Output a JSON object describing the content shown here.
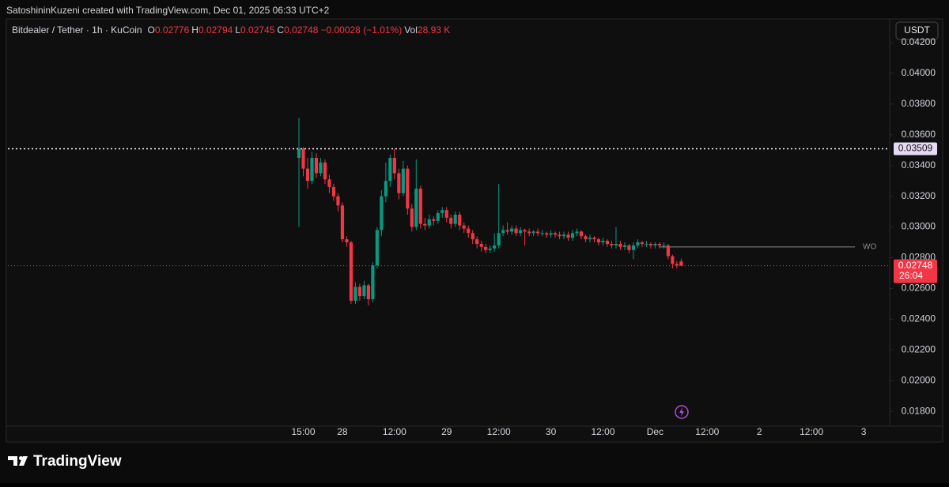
{
  "credit": "SatoshininKuzeni created with TradingView.com, Dec 01, 2025 06:33 UTC+2",
  "brand": "TradingView",
  "currency_button": "USDT",
  "chart_data": {
    "type": "candlestick",
    "symbol": "Bitdealer / Tether · 1h · KuCoin",
    "ohlc_legend": [
      {
        "label": "O",
        "text": "0.02776"
      },
      {
        "label": "H",
        "text": "0.02794"
      },
      {
        "label": "L",
        "text": "0.02745"
      },
      {
        "label": "C",
        "text": "0.02748"
      }
    ],
    "change": "−0.00028 (−1.01%)",
    "volume_label": "Vol",
    "volume": "28.93 K",
    "up_color": "#089981",
    "down_color": "#f23645",
    "x": [
      -1,
      0,
      1,
      2,
      3,
      4,
      5,
      6,
      7,
      8,
      9,
      10,
      11,
      12,
      13,
      14,
      15,
      16,
      17,
      18,
      19,
      20,
      21,
      22,
      23,
      24,
      25,
      26,
      27,
      28,
      29,
      30,
      31,
      32,
      33,
      34,
      35,
      36,
      37,
      38,
      39,
      40,
      41,
      42,
      43,
      44,
      45,
      46,
      47,
      48,
      49,
      50,
      51,
      52,
      53,
      54,
      55,
      56,
      57,
      58,
      59,
      60,
      61,
      62,
      63,
      64,
      65,
      66,
      67,
      68,
      69,
      70,
      71,
      72,
      73,
      74,
      75,
      76,
      77,
      78,
      79,
      80,
      81,
      82,
      83,
      84,
      85,
      86,
      87
    ],
    "open": [
      0.0345,
      0.0351,
      0.0338,
      0.033,
      0.0345,
      0.0335,
      0.0342,
      0.0331,
      0.0326,
      0.032,
      0.0314,
      0.0292,
      0.029,
      0.0252,
      0.0261,
      0.0255,
      0.0262,
      0.0253,
      0.0275,
      0.0298,
      0.032,
      0.033,
      0.0345,
      0.0335,
      0.0322,
      0.0338,
      0.0312,
      0.03,
      0.0325,
      0.0302,
      0.0301,
      0.0305,
      0.0304,
      0.0309,
      0.0311,
      0.0306,
      0.0302,
      0.0308,
      0.0301,
      0.0299,
      0.0296,
      0.0292,
      0.0289,
      0.0287,
      0.0285,
      0.0286,
      0.0288,
      0.0296,
      0.0298,
      0.0297,
      0.0299,
      0.0296,
      0.0298,
      0.0297,
      0.0296,
      0.0297,
      0.0296,
      0.0296,
      0.0295,
      0.0296,
      0.0295,
      0.0294,
      0.0295,
      0.0293,
      0.0296,
      0.0297,
      0.0294,
      0.0292,
      0.0293,
      0.0292,
      0.029,
      0.0291,
      0.0289,
      0.0288,
      0.0289,
      0.0287,
      0.0288,
      0.0285,
      0.0288,
      0.029,
      0.0289,
      0.0289,
      0.0288,
      0.0289,
      0.0288,
      0.0288,
      0.0281,
      0.0276,
      0.02776
    ],
    "high": [
      0.0371,
      0.0352,
      0.0345,
      0.0349,
      0.0348,
      0.0345,
      0.0344,
      0.0334,
      0.0328,
      0.0322,
      0.0316,
      0.0294,
      0.0291,
      0.0264,
      0.0263,
      0.0265,
      0.0263,
      0.0277,
      0.03,
      0.0324,
      0.0342,
      0.0347,
      0.0351,
      0.0338,
      0.0343,
      0.034,
      0.0315,
      0.0344,
      0.0327,
      0.0306,
      0.0308,
      0.0307,
      0.0311,
      0.0313,
      0.0313,
      0.0308,
      0.031,
      0.031,
      0.0303,
      0.0301,
      0.0298,
      0.0294,
      0.0291,
      0.0289,
      0.0288,
      0.0296,
      0.0328,
      0.0301,
      0.0303,
      0.0301,
      0.0301,
      0.03,
      0.0299,
      0.0299,
      0.0298,
      0.0299,
      0.0298,
      0.0297,
      0.0298,
      0.0297,
      0.0297,
      0.0297,
      0.0297,
      0.0298,
      0.0299,
      0.0298,
      0.0295,
      0.0295,
      0.0294,
      0.0293,
      0.0293,
      0.0292,
      0.0291,
      0.03,
      0.0291,
      0.029,
      0.0289,
      0.029,
      0.0292,
      0.0291,
      0.0291,
      0.029,
      0.029,
      0.029,
      0.029,
      0.0289,
      0.0282,
      0.0278,
      0.02794
    ],
    "low": [
      0.03,
      0.0333,
      0.0325,
      0.0328,
      0.0332,
      0.0333,
      0.0328,
      0.0322,
      0.0317,
      0.031,
      0.029,
      0.0287,
      0.025,
      0.025,
      0.0252,
      0.0253,
      0.0249,
      0.0251,
      0.0273,
      0.0294,
      0.0316,
      0.0326,
      0.0331,
      0.0318,
      0.032,
      0.0308,
      0.0297,
      0.0298,
      0.0299,
      0.0298,
      0.0299,
      0.0301,
      0.0302,
      0.0306,
      0.0303,
      0.0299,
      0.03,
      0.0298,
      0.0296,
      0.0293,
      0.0289,
      0.0286,
      0.0284,
      0.0283,
      0.0283,
      0.0284,
      0.0286,
      0.0294,
      0.0295,
      0.0295,
      0.0294,
      0.0294,
      0.0288,
      0.0294,
      0.0294,
      0.0294,
      0.0294,
      0.0293,
      0.0293,
      0.0293,
      0.0292,
      0.0292,
      0.0291,
      0.0291,
      0.0294,
      0.0292,
      0.029,
      0.029,
      0.029,
      0.0288,
      0.0288,
      0.0287,
      0.0286,
      0.0286,
      0.0285,
      0.0285,
      0.0283,
      0.0279,
      0.0286,
      0.0287,
      0.0287,
      0.0286,
      0.0286,
      0.0286,
      0.0286,
      0.0279,
      0.0273,
      0.0273,
      0.02745
    ],
    "close": [
      0.0351,
      0.0338,
      0.033,
      0.0345,
      0.0335,
      0.0342,
      0.0331,
      0.0326,
      0.032,
      0.0314,
      0.0292,
      0.029,
      0.0252,
      0.0261,
      0.0255,
      0.0262,
      0.0253,
      0.0275,
      0.0298,
      0.032,
      0.033,
      0.0345,
      0.0335,
      0.0322,
      0.0338,
      0.0312,
      0.03,
      0.0325,
      0.0302,
      0.0301,
      0.0305,
      0.0304,
      0.0309,
      0.0311,
      0.0306,
      0.0302,
      0.0308,
      0.0301,
      0.0299,
      0.0296,
      0.0292,
      0.0289,
      0.0287,
      0.0285,
      0.0286,
      0.0288,
      0.0296,
      0.0298,
      0.0297,
      0.0299,
      0.0296,
      0.0298,
      0.0297,
      0.0296,
      0.0297,
      0.0296,
      0.0296,
      0.0295,
      0.0296,
      0.0295,
      0.0294,
      0.0295,
      0.0293,
      0.0296,
      0.0297,
      0.0294,
      0.0292,
      0.0293,
      0.0292,
      0.029,
      0.0291,
      0.0289,
      0.0288,
      0.0289,
      0.0287,
      0.0288,
      0.0285,
      0.0288,
      0.029,
      0.0289,
      0.0289,
      0.0288,
      0.0289,
      0.0288,
      0.0288,
      0.0281,
      0.0276,
      0.0275,
      0.02748
    ],
    "xlim": [
      -68,
      135
    ],
    "xticks": [
      {
        "value": 0,
        "label": "15:00"
      },
      {
        "value": 9,
        "label": "28"
      },
      {
        "value": 21,
        "label": "12:00"
      },
      {
        "value": 33,
        "label": "29"
      },
      {
        "value": 45,
        "label": "12:00"
      },
      {
        "value": 57,
        "label": "30"
      },
      {
        "value": 69,
        "label": "12:00"
      },
      {
        "value": 81,
        "label": "Dec"
      },
      {
        "value": 93,
        "label": "12:00"
      },
      {
        "value": 105,
        "label": "2"
      },
      {
        "value": 117,
        "label": "12:00"
      },
      {
        "value": 129,
        "label": "3"
      }
    ],
    "ylim": [
      0.01703,
      0.04231
    ],
    "yticks": [
      {
        "value": 0.018,
        "label": "0.01800"
      },
      {
        "value": 0.02,
        "label": "0.02000"
      },
      {
        "value": 0.022,
        "label": "0.02200"
      },
      {
        "value": 0.024,
        "label": "0.02400"
      },
      {
        "value": 0.026,
        "label": "0.02600"
      },
      {
        "value": 0.028,
        "label": "0.02800"
      },
      {
        "value": 0.03,
        "label": "0.03000"
      },
      {
        "value": 0.032,
        "label": "0.03200"
      },
      {
        "value": 0.034,
        "label": "0.03400"
      },
      {
        "value": 0.036,
        "label": "0.03600"
      },
      {
        "value": 0.038,
        "label": "0.03800"
      },
      {
        "value": 0.04,
        "label": "0.04000"
      },
      {
        "value": 0.042,
        "label": "0.04200"
      }
    ],
    "high_marker": 0.03509,
    "last_price": 0.02748,
    "countdown": "26:04",
    "level": {
      "label": "WO",
      "value": 0.0287,
      "x": [
        82,
        127
      ]
    }
  }
}
